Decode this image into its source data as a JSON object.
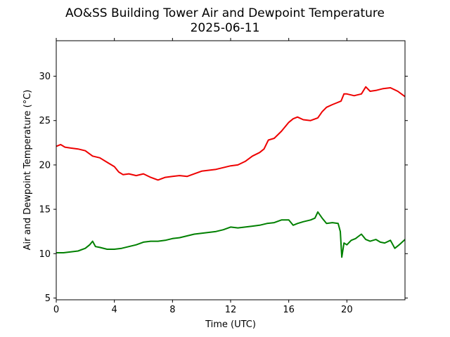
{
  "chart_data": {
    "type": "line",
    "title": "AO&SS Building Tower Air and Dewpoint Temperature",
    "subtitle": "2025-06-11",
    "xlabel": "Time (UTC)",
    "ylabel": "Air and Dewpoint Temperature (°C)",
    "xlim": [
      0,
      24
    ],
    "ylim": [
      4.8,
      34
    ],
    "xticks": [
      0,
      4,
      8,
      12,
      16,
      20
    ],
    "xtick_labels": [
      "0",
      "4",
      "8",
      "12",
      "16",
      "20"
    ],
    "yticks": [
      5,
      10,
      15,
      20,
      25,
      30
    ],
    "ytick_labels": [
      "5",
      "10",
      "15",
      "20",
      "25",
      "30"
    ],
    "grid": false,
    "colors": {
      "air": "#ee0000",
      "dewpoint": "#008000"
    },
    "series": [
      {
        "key": "air",
        "x": [
          0,
          0.3,
          0.6,
          1,
          1.5,
          2,
          2.5,
          3,
          3.5,
          4,
          4.3,
          4.6,
          5,
          5.5,
          6,
          6.5,
          7,
          7.5,
          8,
          8.5,
          9,
          9.5,
          10,
          10.5,
          11,
          11.5,
          12,
          12.5,
          13,
          13.5,
          14,
          14.3,
          14.6,
          15,
          15.5,
          16,
          16.3,
          16.6,
          17,
          17.5,
          18,
          18.3,
          18.6,
          19,
          19.3,
          19.6,
          19.8,
          20,
          20.5,
          21,
          21.3,
          21.6,
          22,
          22.5,
          23,
          23.5,
          24
        ],
        "y": [
          22.1,
          22.3,
          22.0,
          21.9,
          21.8,
          21.6,
          21.0,
          20.8,
          20.3,
          19.8,
          19.2,
          18.9,
          19.0,
          18.8,
          19.0,
          18.6,
          18.3,
          18.6,
          18.7,
          18.8,
          18.7,
          19.0,
          19.3,
          19.4,
          19.5,
          19.7,
          19.9,
          20.0,
          20.4,
          21.0,
          21.4,
          21.8,
          22.8,
          23.0,
          23.8,
          24.8,
          25.2,
          25.4,
          25.1,
          25.0,
          25.3,
          26.0,
          26.5,
          26.8,
          27.0,
          27.2,
          28.0,
          28.0,
          27.8,
          28.0,
          28.8,
          28.3,
          28.4,
          28.6,
          28.7,
          28.3,
          27.7
        ]
      },
      {
        "key": "dewpoint",
        "x": [
          0,
          0.5,
          1,
          1.5,
          2,
          2.3,
          2.5,
          2.7,
          3,
          3.5,
          4,
          4.5,
          5,
          5.5,
          6,
          6.5,
          7,
          7.5,
          8,
          8.5,
          9,
          9.5,
          10,
          10.5,
          11,
          11.5,
          12,
          12.5,
          13,
          13.5,
          14,
          14.5,
          15,
          15.5,
          16,
          16.3,
          16.6,
          17,
          17.5,
          17.8,
          18,
          18.3,
          18.6,
          19,
          19.4,
          19.55,
          19.65,
          19.8,
          20,
          20.3,
          20.6,
          21,
          21.3,
          21.6,
          22,
          22.3,
          22.6,
          23,
          23.3,
          23.6,
          24
        ],
        "y": [
          10.1,
          10.1,
          10.2,
          10.3,
          10.6,
          11.0,
          11.4,
          10.8,
          10.7,
          10.5,
          10.5,
          10.6,
          10.8,
          11.0,
          11.3,
          11.4,
          11.4,
          11.5,
          11.7,
          11.8,
          12.0,
          12.2,
          12.3,
          12.4,
          12.5,
          12.7,
          13.0,
          12.9,
          13.0,
          13.1,
          13.2,
          13.4,
          13.5,
          13.8,
          13.8,
          13.2,
          13.4,
          13.6,
          13.8,
          14.0,
          14.7,
          14.0,
          13.4,
          13.5,
          13.4,
          12.5,
          9.6,
          11.2,
          11.0,
          11.5,
          11.7,
          12.2,
          11.6,
          11.4,
          11.6,
          11.3,
          11.2,
          11.5,
          10.6,
          11.0,
          11.6
        ]
      }
    ]
  }
}
